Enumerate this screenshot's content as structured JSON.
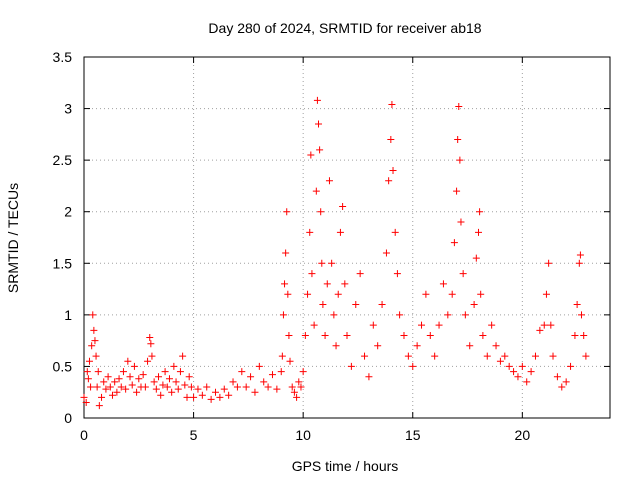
{
  "chart_data": {
    "type": "scatter",
    "title": "Day 280 of 2024, SRMTID for receiver ab18",
    "xlabel": "GPS time / hours",
    "ylabel": "SRMTID / TECUs",
    "xlim": [
      0,
      24
    ],
    "ylim": [
      0,
      3.5
    ],
    "xticks": [
      0,
      5,
      10,
      15,
      20
    ],
    "xtick_labels": [
      "0",
      "5",
      "10",
      "15",
      "20"
    ],
    "yticks": [
      0,
      0.5,
      1,
      1.5,
      2,
      2.5,
      3,
      3.5
    ],
    "ytick_labels": [
      "0",
      "0.5",
      "1",
      "1.5",
      "2",
      "2.5",
      "3",
      "3.5"
    ],
    "grid": true,
    "marker": "+",
    "color": "#ff0000",
    "series": [
      {
        "name": "SRMTID",
        "points": [
          [
            0.0,
            0.2
          ],
          [
            0.1,
            0.15
          ],
          [
            0.15,
            0.45
          ],
          [
            0.2,
            0.38
          ],
          [
            0.25,
            0.55
          ],
          [
            0.3,
            0.3
          ],
          [
            0.35,
            0.7
          ],
          [
            0.4,
            1.0
          ],
          [
            0.45,
            0.85
          ],
          [
            0.5,
            0.75
          ],
          [
            0.55,
            0.6
          ],
          [
            0.6,
            0.3
          ],
          [
            0.65,
            0.45
          ],
          [
            0.7,
            0.12
          ],
          [
            0.8,
            0.2
          ],
          [
            0.9,
            0.35
          ],
          [
            1.0,
            0.28
          ],
          [
            1.1,
            0.4
          ],
          [
            1.2,
            0.3
          ],
          [
            1.3,
            0.22
          ],
          [
            1.4,
            0.35
          ],
          [
            1.5,
            0.25
          ],
          [
            1.6,
            0.38
          ],
          [
            1.7,
            0.3
          ],
          [
            1.8,
            0.45
          ],
          [
            1.9,
            0.28
          ],
          [
            2.0,
            0.55
          ],
          [
            2.1,
            0.4
          ],
          [
            2.2,
            0.32
          ],
          [
            2.3,
            0.5
          ],
          [
            2.4,
            0.25
          ],
          [
            2.5,
            0.38
          ],
          [
            2.6,
            0.3
          ],
          [
            2.7,
            0.42
          ],
          [
            2.8,
            0.3
          ],
          [
            2.9,
            0.55
          ],
          [
            3.0,
            0.78
          ],
          [
            3.05,
            0.72
          ],
          [
            3.1,
            0.6
          ],
          [
            3.2,
            0.35
          ],
          [
            3.3,
            0.28
          ],
          [
            3.4,
            0.4
          ],
          [
            3.5,
            0.22
          ],
          [
            3.6,
            0.32
          ],
          [
            3.7,
            0.45
          ],
          [
            3.8,
            0.3
          ],
          [
            3.9,
            0.38
          ],
          [
            4.0,
            0.25
          ],
          [
            4.1,
            0.5
          ],
          [
            4.2,
            0.35
          ],
          [
            4.3,
            0.28
          ],
          [
            4.4,
            0.45
          ],
          [
            4.5,
            0.6
          ],
          [
            4.6,
            0.32
          ],
          [
            4.7,
            0.2
          ],
          [
            4.8,
            0.4
          ],
          [
            4.9,
            0.3
          ],
          [
            5.0,
            0.2
          ],
          [
            5.2,
            0.28
          ],
          [
            5.4,
            0.22
          ],
          [
            5.6,
            0.3
          ],
          [
            5.8,
            0.18
          ],
          [
            6.0,
            0.25
          ],
          [
            6.2,
            0.2
          ],
          [
            6.4,
            0.28
          ],
          [
            6.6,
            0.22
          ],
          [
            6.8,
            0.35
          ],
          [
            7.0,
            0.3
          ],
          [
            7.2,
            0.45
          ],
          [
            7.4,
            0.3
          ],
          [
            7.6,
            0.4
          ],
          [
            7.8,
            0.25
          ],
          [
            8.0,
            0.5
          ],
          [
            8.2,
            0.35
          ],
          [
            8.4,
            0.3
          ],
          [
            8.6,
            0.42
          ],
          [
            8.8,
            0.28
          ],
          [
            9.0,
            0.45
          ],
          [
            9.05,
            0.6
          ],
          [
            9.1,
            1.0
          ],
          [
            9.15,
            1.3
          ],
          [
            9.2,
            1.6
          ],
          [
            9.25,
            2.0
          ],
          [
            9.3,
            1.2
          ],
          [
            9.35,
            0.8
          ],
          [
            9.4,
            0.55
          ],
          [
            9.5,
            0.3
          ],
          [
            9.6,
            0.25
          ],
          [
            9.7,
            0.2
          ],
          [
            9.8,
            0.35
          ],
          [
            9.9,
            0.3
          ],
          [
            10.0,
            0.45
          ],
          [
            10.1,
            0.8
          ],
          [
            10.2,
            1.2
          ],
          [
            10.3,
            1.8
          ],
          [
            10.35,
            2.55
          ],
          [
            10.4,
            1.4
          ],
          [
            10.5,
            0.9
          ],
          [
            10.6,
            2.2
          ],
          [
            10.65,
            3.08
          ],
          [
            10.7,
            2.85
          ],
          [
            10.75,
            2.6
          ],
          [
            10.8,
            2.0
          ],
          [
            10.85,
            1.5
          ],
          [
            10.9,
            1.1
          ],
          [
            11.0,
            0.8
          ],
          [
            11.1,
            1.3
          ],
          [
            11.2,
            2.3
          ],
          [
            11.3,
            1.5
          ],
          [
            11.4,
            1.0
          ],
          [
            11.5,
            0.7
          ],
          [
            11.6,
            1.2
          ],
          [
            11.7,
            1.8
          ],
          [
            11.8,
            2.05
          ],
          [
            11.9,
            1.3
          ],
          [
            12.0,
            0.8
          ],
          [
            12.2,
            0.5
          ],
          [
            12.4,
            1.1
          ],
          [
            12.6,
            1.4
          ],
          [
            12.8,
            0.6
          ],
          [
            13.0,
            0.4
          ],
          [
            13.2,
            0.9
          ],
          [
            13.4,
            0.7
          ],
          [
            13.6,
            1.1
          ],
          [
            13.8,
            1.6
          ],
          [
            13.9,
            2.3
          ],
          [
            14.0,
            2.7
          ],
          [
            14.05,
            3.04
          ],
          [
            14.1,
            2.4
          ],
          [
            14.2,
            1.8
          ],
          [
            14.3,
            1.4
          ],
          [
            14.4,
            1.0
          ],
          [
            14.6,
            0.8
          ],
          [
            14.8,
            0.6
          ],
          [
            15.0,
            0.5
          ],
          [
            15.2,
            0.7
          ],
          [
            15.4,
            0.9
          ],
          [
            15.6,
            1.2
          ],
          [
            15.8,
            0.8
          ],
          [
            16.0,
            0.6
          ],
          [
            16.2,
            0.9
          ],
          [
            16.4,
            1.3
          ],
          [
            16.6,
            1.0
          ],
          [
            16.8,
            1.2
          ],
          [
            16.9,
            1.7
          ],
          [
            17.0,
            2.2
          ],
          [
            17.05,
            2.7
          ],
          [
            17.1,
            3.02
          ],
          [
            17.15,
            2.5
          ],
          [
            17.2,
            1.9
          ],
          [
            17.3,
            1.4
          ],
          [
            17.4,
            1.0
          ],
          [
            17.6,
            0.7
          ],
          [
            17.8,
            1.1
          ],
          [
            17.9,
            1.55
          ],
          [
            18.0,
            1.8
          ],
          [
            18.05,
            2.0
          ],
          [
            18.1,
            1.2
          ],
          [
            18.2,
            0.8
          ],
          [
            18.4,
            0.6
          ],
          [
            18.6,
            0.9
          ],
          [
            18.8,
            0.7
          ],
          [
            19.0,
            0.55
          ],
          [
            19.2,
            0.6
          ],
          [
            19.4,
            0.5
          ],
          [
            19.6,
            0.45
          ],
          [
            19.8,
            0.4
          ],
          [
            20.0,
            0.5
          ],
          [
            20.2,
            0.35
          ],
          [
            20.4,
            0.45
          ],
          [
            20.6,
            0.6
          ],
          [
            20.8,
            0.85
          ],
          [
            21.0,
            0.9
          ],
          [
            21.1,
            1.2
          ],
          [
            21.2,
            1.5
          ],
          [
            21.3,
            0.9
          ],
          [
            21.4,
            0.6
          ],
          [
            21.6,
            0.4
          ],
          [
            21.8,
            0.3
          ],
          [
            22.0,
            0.35
          ],
          [
            22.2,
            0.5
          ],
          [
            22.4,
            0.8
          ],
          [
            22.5,
            1.1
          ],
          [
            22.6,
            1.5
          ],
          [
            22.65,
            1.58
          ],
          [
            22.7,
            1.0
          ],
          [
            22.8,
            0.8
          ],
          [
            22.9,
            0.6
          ]
        ]
      }
    ]
  }
}
